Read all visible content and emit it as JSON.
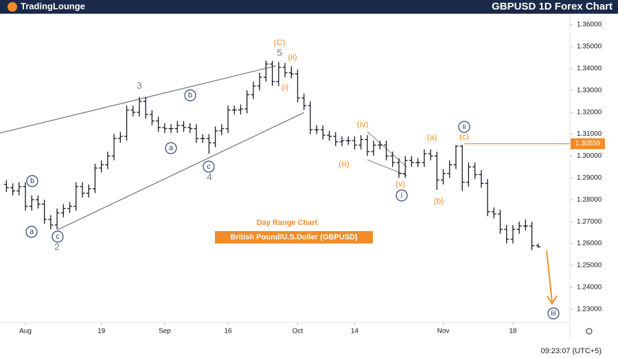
{
  "header": {
    "logo": "TradingLounge",
    "title": "GBPUSD 1D Forex Chart"
  },
  "chart_data": {
    "type": "ohlc",
    "color": "#131722",
    "subtitle": "Day Range Chart",
    "label": "British Pound/U.S.Doller (GBPUSD)",
    "categories": [
      "Jul 29",
      "Jul 30",
      "Jul 31",
      "Aug 1",
      "Aug 2",
      "Aug 5",
      "Aug 6",
      "Aug 7",
      "Aug 8",
      "Aug 9",
      "Aug 12",
      "Aug 13",
      "Aug 14",
      "Aug 15",
      "Aug 16",
      "Aug 19",
      "Aug 20",
      "Aug 21",
      "Aug 22",
      "Aug 23",
      "Aug 26",
      "Aug 27",
      "Aug 28",
      "Aug 29",
      "Aug 30",
      "Sep 2",
      "Sep 3",
      "Sep 4",
      "Sep 5",
      "Sep 6",
      "Sep 9",
      "Sep 10",
      "Sep 11",
      "Sep 12",
      "Sep 13",
      "Sep 16",
      "Sep 17",
      "Sep 18",
      "Sep 19",
      "Sep 20",
      "Sep 23",
      "Sep 24",
      "Sep 25",
      "Sep 26",
      "Sep 27",
      "Sep 30",
      "Oct 1",
      "Oct 2",
      "Oct 3",
      "Oct 4",
      "Oct 7",
      "Oct 8",
      "Oct 9",
      "Oct 10",
      "Oct 11",
      "Oct 14",
      "Oct 15",
      "Oct 16",
      "Oct 17",
      "Oct 18",
      "Oct 21",
      "Oct 22",
      "Oct 23",
      "Oct 24",
      "Oct 25",
      "Oct 28",
      "Oct 29",
      "Oct 30",
      "Oct 31",
      "Nov 1",
      "Nov 4",
      "Nov 5",
      "Nov 6",
      "Nov 7",
      "Nov 8",
      "Nov 11",
      "Nov 12",
      "Nov 13",
      "Nov 14",
      "Nov 15",
      "Nov 18",
      "Nov 19",
      "Nov 20",
      "Nov 21",
      "Nov 22"
    ],
    "open": [
      1.287,
      1.2855,
      1.284,
      1.286,
      1.277,
      1.28,
      1.278,
      1.271,
      1.2685,
      1.274,
      1.276,
      1.277,
      1.286,
      1.283,
      1.285,
      1.2945,
      1.296,
      1.3,
      1.308,
      1.309,
      1.321,
      1.32,
      1.325,
      1.319,
      1.316,
      1.313,
      1.3125,
      1.3125,
      1.314,
      1.313,
      1.3125,
      1.308,
      1.308,
      1.306,
      1.3115,
      1.3125,
      1.321,
      1.321,
      1.3215,
      1.328,
      1.332,
      1.336,
      1.342,
      1.334,
      1.3405,
      1.338,
      1.3375,
      1.3265,
      1.323,
      1.312,
      1.312,
      1.3095,
      1.309,
      1.3065,
      1.307,
      1.307,
      1.305,
      1.3075,
      1.302,
      1.305,
      1.305,
      1.3,
      1.297,
      1.292,
      1.298,
      1.297,
      1.297,
      1.301,
      1.3,
      1.289,
      1.292,
      1.296,
      1.3045,
      1.288,
      1.295,
      1.2915,
      1.2875,
      1.2745,
      1.2735,
      1.2665,
      1.262,
      1.2665,
      1.268,
      1.268,
      1.259
    ],
    "high": [
      1.289,
      1.2875,
      1.288,
      1.288,
      1.282,
      1.282,
      1.28,
      1.273,
      1.276,
      1.278,
      1.279,
      1.288,
      1.288,
      1.287,
      1.2965,
      1.298,
      1.302,
      1.31,
      1.311,
      1.323,
      1.323,
      1.327,
      1.327,
      1.321,
      1.318,
      1.315,
      1.3145,
      1.316,
      1.316,
      1.315,
      1.3145,
      1.31,
      1.31,
      1.3135,
      1.3145,
      1.323,
      1.323,
      1.3235,
      1.33,
      1.334,
      1.338,
      1.3435,
      1.3435,
      1.343,
      1.3425,
      1.341,
      1.3395,
      1.3285,
      1.325,
      1.314,
      1.314,
      1.3115,
      1.311,
      1.309,
      1.309,
      1.309,
      1.3095,
      1.3095,
      1.307,
      1.307,
      1.307,
      1.302,
      1.299,
      1.3,
      1.3,
      1.299,
      1.303,
      1.303,
      1.302,
      1.294,
      1.298,
      1.305,
      1.305,
      1.297,
      1.297,
      1.2935,
      1.2895,
      1.2765,
      1.2755,
      1.2685,
      1.2685,
      1.27,
      1.271,
      1.27,
      1.26
    ],
    "low": [
      1.2835,
      1.282,
      1.282,
      1.275,
      1.275,
      1.276,
      1.269,
      1.2665,
      1.2665,
      1.272,
      1.274,
      1.275,
      1.281,
      1.281,
      1.283,
      1.2925,
      1.294,
      1.298,
      1.306,
      1.307,
      1.318,
      1.318,
      1.317,
      1.314,
      1.311,
      1.3105,
      1.3105,
      1.3105,
      1.311,
      1.3105,
      1.306,
      1.306,
      1.301,
      1.304,
      1.3095,
      1.3105,
      1.319,
      1.319,
      1.3195,
      1.326,
      1.33,
      1.334,
      1.332,
      1.332,
      1.336,
      1.3355,
      1.3245,
      1.321,
      1.31,
      1.31,
      1.3075,
      1.307,
      1.3045,
      1.3045,
      1.305,
      1.303,
      1.303,
      1.3,
      1.3,
      1.303,
      1.298,
      1.295,
      1.29,
      1.29,
      1.295,
      1.295,
      1.295,
      1.298,
      1.2845,
      1.287,
      1.29,
      1.294,
      1.284,
      1.286,
      1.2895,
      1.2855,
      1.2725,
      1.2715,
      1.2645,
      1.26,
      1.26,
      1.2645,
      1.266,
      1.257,
      1.258
    ],
    "close": [
      1.2855,
      1.284,
      1.286,
      1.277,
      1.28,
      1.278,
      1.271,
      1.2685,
      1.274,
      1.276,
      1.277,
      1.286,
      1.283,
      1.285,
      1.2945,
      1.296,
      1.3,
      1.308,
      1.309,
      1.321,
      1.32,
      1.325,
      1.319,
      1.316,
      1.313,
      1.3125,
      1.3125,
      1.314,
      1.313,
      1.3125,
      1.308,
      1.308,
      1.306,
      1.3115,
      1.3125,
      1.321,
      1.321,
      1.3215,
      1.328,
      1.332,
      1.336,
      1.342,
      1.334,
      1.3405,
      1.338,
      1.3375,
      1.3265,
      1.323,
      1.312,
      1.312,
      1.3095,
      1.309,
      1.3065,
      1.307,
      1.307,
      1.305,
      1.3075,
      1.302,
      1.305,
      1.305,
      1.3,
      1.297,
      1.292,
      1.298,
      1.297,
      1.297,
      1.301,
      1.3,
      1.289,
      1.292,
      1.296,
      1.3045,
      1.288,
      1.295,
      1.2915,
      1.2875,
      1.2745,
      1.2735,
      1.2665,
      1.262,
      1.2665,
      1.268,
      1.268,
      1.259,
      1.2585
    ],
    "xticks": [
      {
        "value": "Aug 1",
        "label": "Aug"
      },
      {
        "value": "Aug 19",
        "label": "19"
      },
      {
        "value": "Sep 2",
        "label": "Sep"
      },
      {
        "value": "Sep 16",
        "label": "16"
      },
      {
        "value": "Oct 1",
        "label": "Oct"
      },
      {
        "value": "Oct 14",
        "label": "14"
      },
      {
        "value": "Nov 1",
        "label": "Nov"
      },
      {
        "value": "Nov 18",
        "label": "18"
      }
    ],
    "ylim": [
      1.224,
      1.365
    ],
    "yticks": [
      {
        "value": 1.23,
        "label": "1.23000"
      },
      {
        "value": 1.24,
        "label": "1.24000"
      },
      {
        "value": 1.25,
        "label": "1.25000"
      },
      {
        "value": 1.26,
        "label": "1.26000"
      },
      {
        "value": 1.27,
        "label": "1.27000"
      },
      {
        "value": 1.28,
        "label": "1.28000"
      },
      {
        "value": 1.29,
        "label": "1.29000"
      },
      {
        "value": 1.3,
        "label": "1.30000"
      },
      {
        "value": 1.31,
        "label": "1.31000"
      },
      {
        "value": 1.32,
        "label": "1.32000"
      },
      {
        "value": 1.33,
        "label": "1.33000"
      },
      {
        "value": 1.34,
        "label": "1.34000"
      },
      {
        "value": 1.35,
        "label": "1.35000"
      },
      {
        "value": 1.36,
        "label": "1.36000"
      }
    ],
    "level": {
      "value": 1.30559,
      "label": "1.30559",
      "color": "#f28c28"
    },
    "annotations": [
      {
        "text": "b",
        "style": "circled"
      },
      {
        "text": "a",
        "style": "circled"
      },
      {
        "text": "c",
        "style": "circled"
      },
      {
        "text": "2",
        "style": "grey"
      },
      {
        "text": "3",
        "style": "grey"
      },
      {
        "text": "b",
        "style": "circled"
      },
      {
        "text": "a",
        "style": "circled"
      },
      {
        "text": "c",
        "style": "circled"
      },
      {
        "text": "4",
        "style": "grey"
      },
      {
        "text": "(C)",
        "style": "orange"
      },
      {
        "text": "5",
        "style": "grey"
      },
      {
        "text": "(ii)",
        "style": "orange"
      },
      {
        "text": "(i)",
        "style": "orange"
      },
      {
        "text": "(iv)",
        "style": "orange"
      },
      {
        "text": "(iii)",
        "style": "orange"
      },
      {
        "text": "(v)",
        "style": "orange"
      },
      {
        "text": "i",
        "style": "circled"
      },
      {
        "text": "(a)",
        "style": "orange"
      },
      {
        "text": "(b)",
        "style": "orange"
      },
      {
        "text": "(c)",
        "style": "orange"
      },
      {
        "text": "ii",
        "style": "circled"
      },
      {
        "text": "iii",
        "style": "circled"
      }
    ],
    "timestamp": "09:23:07 (UTC+5)"
  }
}
